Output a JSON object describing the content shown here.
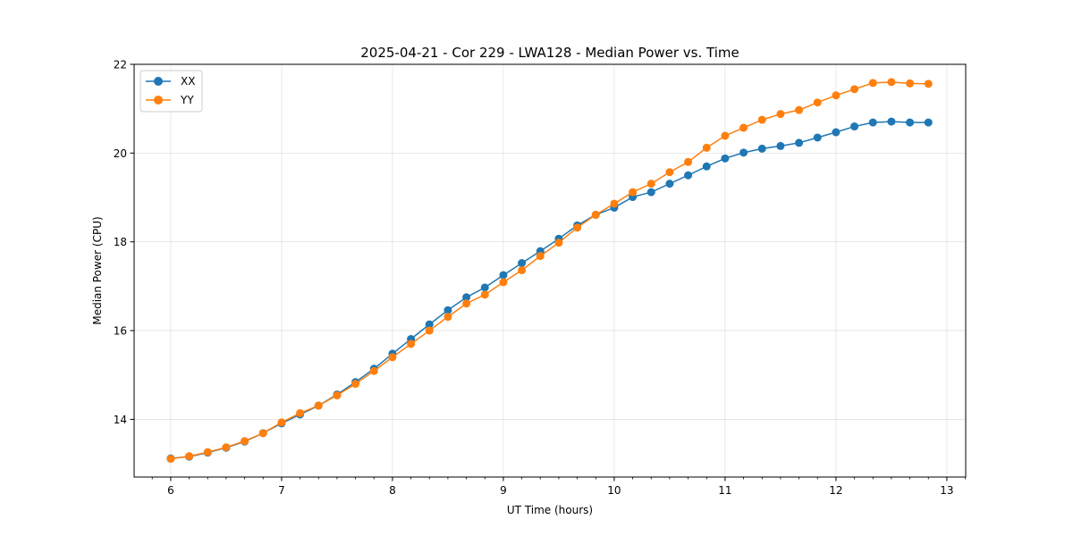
{
  "chart_data": {
    "type": "line",
    "title": "2025-04-21 - Cor 229 - LWA128 - Median Power vs. Time",
    "xlabel": "UT Time (hours)",
    "ylabel": "Median Power (CPU)",
    "xlim": [
      5.67,
      13.17
    ],
    "ylim": [
      12.7,
      22.0
    ],
    "xticks": [
      6,
      7,
      8,
      9,
      10,
      11,
      12,
      13
    ],
    "xtick_labels": [
      "6",
      "7",
      "8",
      "9",
      "10",
      "11",
      "12",
      "13"
    ],
    "yticks": [
      14,
      16,
      18,
      20,
      22
    ],
    "ytick_labels": [
      "14",
      "16",
      "18",
      "20",
      "22"
    ],
    "grid": true,
    "legend_position": "top-left",
    "x": [
      6.0,
      6.1667,
      6.3333,
      6.5,
      6.6667,
      6.8333,
      7.0,
      7.1667,
      7.3333,
      7.5,
      7.6667,
      7.8333,
      8.0,
      8.1667,
      8.3333,
      8.5,
      8.6667,
      8.8333,
      9.0,
      9.1667,
      9.3333,
      9.5,
      9.6667,
      9.8333,
      10.0,
      10.1667,
      10.3333,
      10.5,
      10.6667,
      10.8333,
      11.0,
      11.1667,
      11.3333,
      11.5,
      11.6667,
      11.8333,
      12.0,
      12.1667,
      12.3333,
      12.5,
      12.6667,
      12.8333
    ],
    "series": [
      {
        "name": "XX",
        "color": "#1f77b4",
        "values": [
          13.12,
          13.16,
          13.25,
          13.36,
          13.5,
          13.69,
          13.91,
          14.11,
          14.31,
          14.56,
          14.84,
          15.14,
          15.48,
          15.81,
          16.14,
          16.46,
          16.75,
          16.97,
          17.25,
          17.52,
          17.79,
          18.07,
          18.37,
          18.61,
          18.77,
          19.01,
          19.12,
          19.31,
          19.5,
          19.7,
          19.88,
          20.01,
          20.1,
          20.16,
          20.23,
          20.35,
          20.47,
          20.6,
          20.69,
          20.71,
          20.69,
          20.69
        ]
      },
      {
        "name": "YY",
        "color": "#ff7f0e",
        "values": [
          13.11,
          13.17,
          13.26,
          13.37,
          13.51,
          13.69,
          13.93,
          14.14,
          14.31,
          14.54,
          14.8,
          15.09,
          15.4,
          15.7,
          16.0,
          16.31,
          16.61,
          16.81,
          17.09,
          17.36,
          17.68,
          17.98,
          18.32,
          18.61,
          18.86,
          19.12,
          19.31,
          19.57,
          19.8,
          20.12,
          20.39,
          20.57,
          20.75,
          20.88,
          20.97,
          21.14,
          21.3,
          21.44,
          21.58,
          21.6,
          21.57,
          21.56
        ]
      }
    ]
  }
}
